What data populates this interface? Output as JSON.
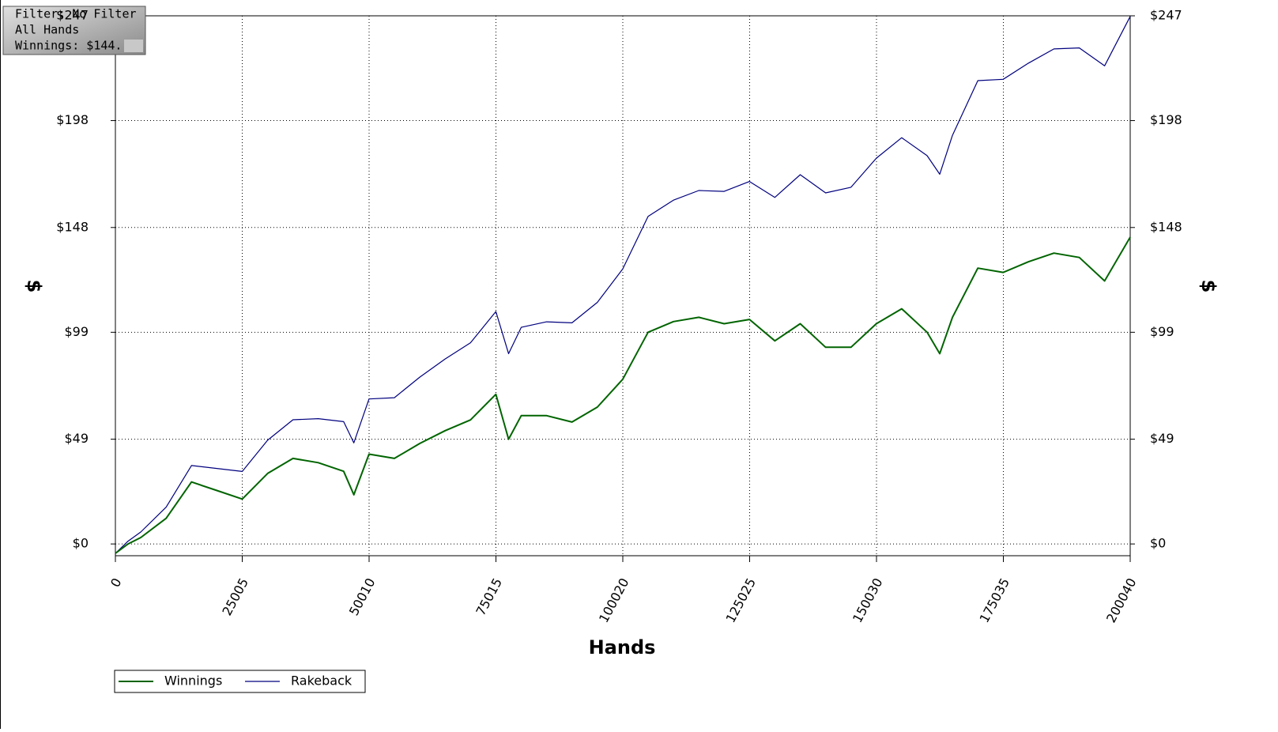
{
  "chart_data": {
    "type": "line",
    "info_box": [
      "Filter: No Filter",
      "All Hands",
      "Winnings: $144."
    ],
    "xlabel": "Hands",
    "ylabel": "$",
    "y2label": "$",
    "x": [
      0,
      2500,
      5000,
      10000,
      15000,
      20000,
      25000,
      30000,
      35000,
      40000,
      45000,
      47000,
      50000,
      55000,
      60000,
      65000,
      70000,
      75000,
      77500,
      80000,
      85000,
      90000,
      95000,
      100000,
      105000,
      110000,
      115000,
      120000,
      125000,
      130000,
      135000,
      140000,
      145000,
      150000,
      155000,
      160000,
      162500,
      165000,
      170000,
      175000,
      180000,
      185000,
      190000,
      195000,
      200040
    ],
    "series": [
      {
        "name": "Winnings",
        "color": "#006400",
        "values": [
          -4.4,
          0,
          3,
          12,
          29,
          25,
          21,
          33,
          40,
          38,
          34,
          23,
          42,
          40,
          47,
          53,
          58,
          70,
          49,
          60,
          60,
          57,
          64,
          77,
          99,
          104,
          106,
          103,
          105,
          95,
          103,
          92,
          92,
          103,
          110,
          99,
          89,
          106,
          129,
          127,
          132,
          136,
          134,
          123,
          143.5
        ]
      },
      {
        "name": "Rakeback",
        "color": "#00007f",
        "values": [
          -4.4,
          1.3,
          5.6,
          17.2,
          36.7,
          35.3,
          33.9,
          48.5,
          58.1,
          58.6,
          57.2,
          47.3,
          67.8,
          68.4,
          78,
          86.5,
          94.1,
          108.7,
          89,
          101.3,
          103.9,
          103.4,
          113,
          128.6,
          153.2,
          160.8,
          165.3,
          164.9,
          169.5,
          162.1,
          172.7,
          164.2,
          166.8,
          180.4,
          190,
          181.6,
          172.9,
          191.1,
          216.7,
          217.3,
          224.9,
          231.5,
          232,
          223.6,
          246.7
        ]
      }
    ],
    "xlim": [
      0,
      200040
    ],
    "xticks": [
      0,
      25005,
      50010,
      75015,
      100020,
      125025,
      150030,
      175035,
      200040
    ],
    "ylim": [
      -5.5,
      247
    ],
    "yticks": [
      {
        "value": 0,
        "label": "$0"
      },
      {
        "value": 49,
        "label": "$49"
      },
      {
        "value": 99,
        "label": "$99"
      },
      {
        "value": 148,
        "label": "$148"
      },
      {
        "value": 198,
        "label": "$198"
      },
      {
        "value": 247,
        "label": "$247"
      }
    ],
    "y2lim": [
      -5.5,
      247
    ],
    "y2ticks": [
      {
        "value": 0,
        "label": "$0"
      },
      {
        "value": 49,
        "label": "$49"
      },
      {
        "value": 99,
        "label": "$99"
      },
      {
        "value": 148,
        "label": "$148"
      },
      {
        "value": 198,
        "label": "$198"
      },
      {
        "value": 247,
        "label": "$247"
      }
    ],
    "grid": true,
    "legend": "bottom-left"
  }
}
